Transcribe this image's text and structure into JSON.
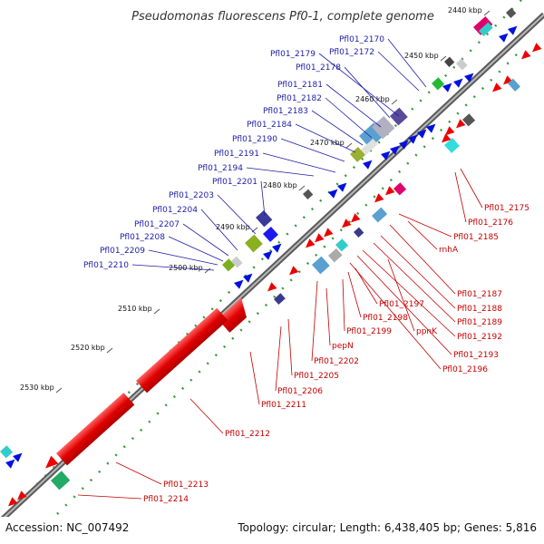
{
  "title": "Pseudomonas fluorescens Pf0-1, complete genome",
  "footer": {
    "accession": "Accession: NC_007492",
    "summary": "Topology: circular; Length: 6,438,405 bp; Genes: 5,816"
  },
  "colors": {
    "backbone": "#8c8c8c",
    "forward_label": "#1d1da8",
    "reverse_label": "#c40000",
    "dots": "#3a9a3a"
  },
  "ticks": [
    "2440 kbp",
    "2450 kbp",
    "2460 kbp",
    "2470 kbp",
    "2480 kbp",
    "2490 kbp",
    "2500 kbp",
    "2510 kbp",
    "2520 kbp",
    "2530 kbp"
  ],
  "forward_genes": [
    "Pfl01_2170",
    "Pfl01_2172",
    "Pfl01_2178",
    "Pfl01_2179",
    "Pfl01_2181",
    "Pfl01_2182",
    "Pfl01_2183",
    "Pfl01_2184",
    "Pfl01_2190",
    "Pfl01_2191",
    "Pfl01_2194",
    "Pfl01_2201",
    "Pfl01_2203",
    "Pfl01_2204",
    "Pfl01_2207",
    "Pfl01_2208",
    "Pfl01_2209",
    "Pfl01_2210"
  ],
  "reverse_genes": [
    "Pfl01_2175",
    "Pfl01_2176",
    "Pfl01_2185",
    "rnhA",
    "Pfl01_2187",
    "Pfl01_2188",
    "Pfl01_2189",
    "Pfl01_2192",
    "Pfl01_2193",
    "Pfl01_2196",
    "Pfl01_2197",
    "Pfl01_2198",
    "Pfl01_2199",
    "ppnK",
    "pepN",
    "Pfl01_2202",
    "Pfl01_2205",
    "Pfl01_2206",
    "Pfl01_2211",
    "Pfl01_2212",
    "Pfl01_2213",
    "Pfl01_2214"
  ]
}
